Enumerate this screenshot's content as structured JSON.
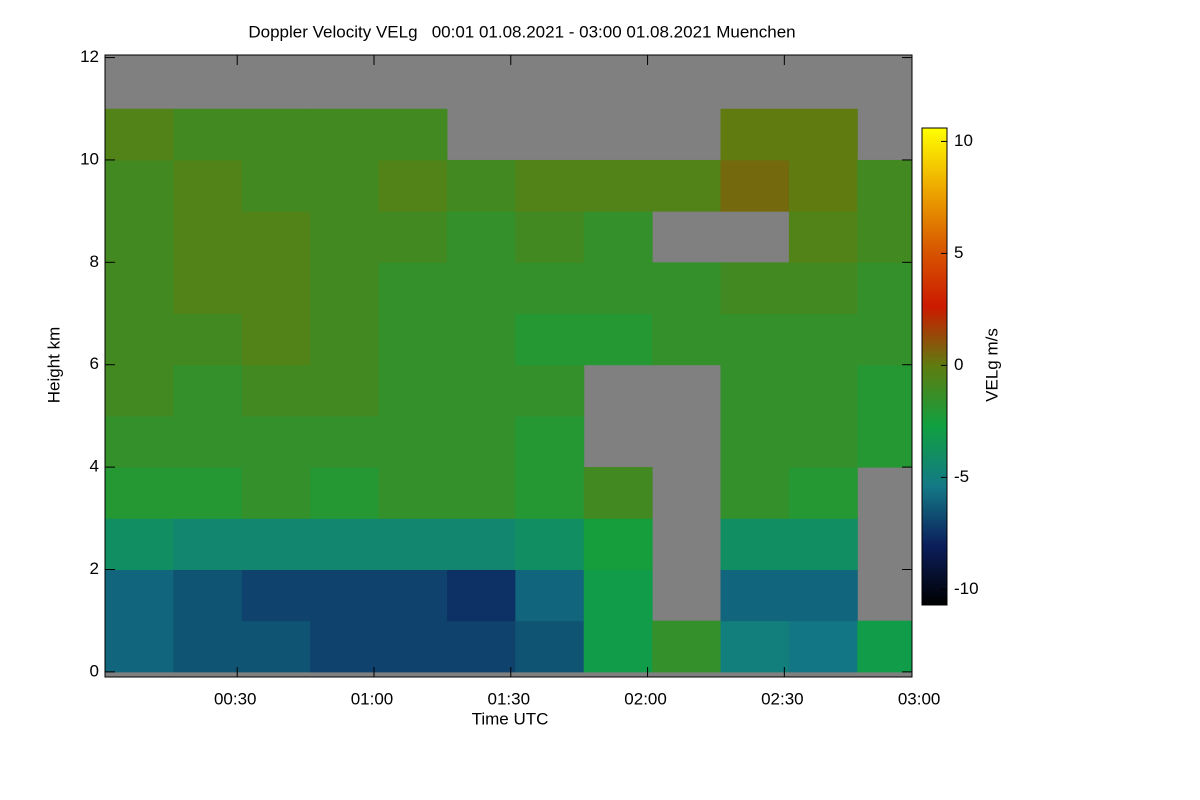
{
  "chart_data": {
    "type": "heatmap",
    "title": "Doppler Velocity VELg   00:01 01.08.2021 - 03:00 01.08.2021 Muenchen",
    "x_label": "Time UTC",
    "y_label": "Height km",
    "colorbar_label": "VELg m/s",
    "xbins": [
      1,
      16,
      31,
      46,
      61,
      76,
      91,
      106,
      121,
      136,
      151,
      166,
      178
    ],
    "ybins": [
      0,
      1,
      2,
      3,
      4,
      5,
      6,
      7,
      8,
      9,
      10,
      11,
      12
    ],
    "z": [
      [
        -6,
        -6.5,
        -6.5,
        -7,
        -7,
        -7,
        -6.5,
        -3,
        -1.5,
        -5,
        -5.5,
        -3
      ],
      [
        -6,
        -6.5,
        -7,
        -7,
        -7,
        -7.5,
        -6,
        -3,
        null,
        -6,
        -6,
        null
      ],
      [
        -4,
        -4.5,
        -4.5,
        -4.5,
        -4.5,
        -4.5,
        -4,
        -2.5,
        null,
        -4,
        -4,
        null
      ],
      [
        -2,
        -2,
        -1.5,
        -2,
        -1.5,
        -1.5,
        -2,
        -1,
        null,
        -1.5,
        -2,
        null
      ],
      [
        -1.5,
        -1.5,
        -1.5,
        -1.5,
        -1.5,
        -1.5,
        -2,
        null,
        null,
        -1.5,
        -1.5,
        -2
      ],
      [
        -1,
        -1.5,
        -1,
        -1,
        -1.5,
        -1.5,
        -1.5,
        null,
        null,
        -1.5,
        -1.5,
        -2
      ],
      [
        -1,
        -1,
        -0.5,
        -1,
        -1.5,
        -1.5,
        -2,
        -2,
        -1.5,
        -1.5,
        -1.5,
        -1.5
      ],
      [
        -1,
        -0.5,
        -0.5,
        -1,
        -1.5,
        -1.5,
        -1.5,
        -1.5,
        -1.5,
        -1,
        -1,
        -1.5
      ],
      [
        -1,
        -0.5,
        -0.5,
        -1,
        -1,
        -1.5,
        -1,
        -1.5,
        null,
        null,
        -0.5,
        -1
      ],
      [
        -1,
        -0.5,
        -1,
        -1,
        -0.5,
        -1,
        -0.5,
        -0.5,
        -0.5,
        0.5,
        0,
        -1
      ],
      [
        -0.5,
        -1,
        -1,
        -1,
        -1,
        null,
        null,
        null,
        null,
        0,
        0,
        null
      ],
      [
        null,
        null,
        null,
        null,
        null,
        null,
        null,
        null,
        null,
        null,
        null,
        null
      ]
    ],
    "missing_color": "#808080",
    "colorscale": [
      "#000000",
      "#0c1f5c",
      "#137a86",
      "#10a040",
      "#5e7d10",
      "#cc1a00",
      "#d85a00",
      "#eeaa00",
      "#ffff00"
    ],
    "xlim": [
      1,
      178
    ],
    "xticks": [
      {
        "value": 30,
        "label": "00:30"
      },
      {
        "value": 60,
        "label": "01:00"
      },
      {
        "value": 90,
        "label": "01:30"
      },
      {
        "value": 120,
        "label": "02:00"
      },
      {
        "value": 150,
        "label": "02:30"
      },
      {
        "value": 180,
        "label": "03:00"
      }
    ],
    "ylim": [
      -0.1,
      12.05
    ],
    "yticks": [
      0,
      2,
      4,
      6,
      8,
      10,
      12
    ],
    "zlim": [
      -10.7,
      10.6
    ],
    "zticks": [
      -10,
      -5,
      0,
      5,
      10
    ]
  }
}
